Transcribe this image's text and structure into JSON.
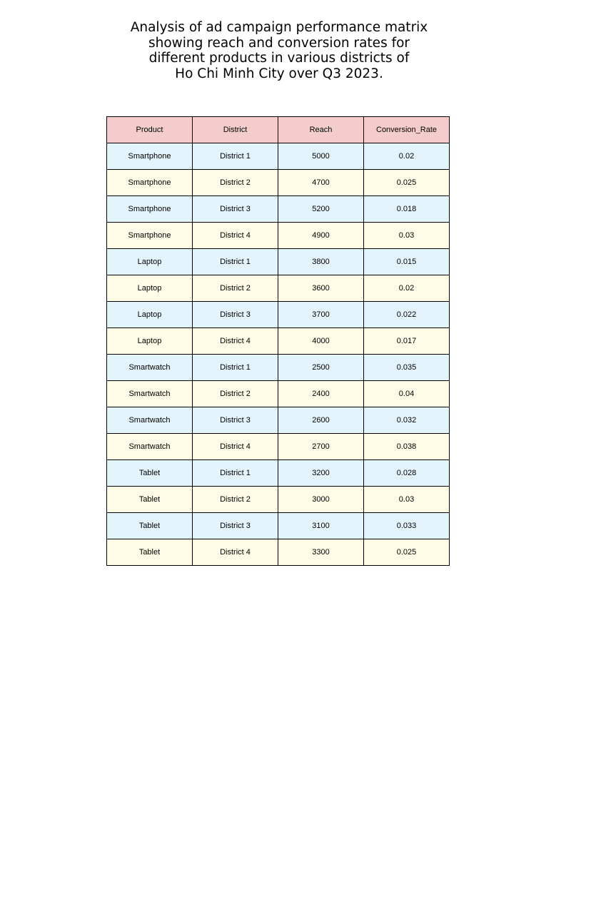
{
  "chart_data": {
    "type": "table",
    "title": "Analysis of ad campaign performance matrix\nshowing reach and conversion rates for\ndifferent products in various districts of\nHo Chi Minh City over Q3 2023.",
    "columns": [
      "Product",
      "District",
      "Reach",
      "Conversion_Rate"
    ],
    "rows": [
      [
        "Smartphone",
        "District 1",
        "5000",
        "0.02"
      ],
      [
        "Smartphone",
        "District 2",
        "4700",
        "0.025"
      ],
      [
        "Smartphone",
        "District 3",
        "5200",
        "0.018"
      ],
      [
        "Smartphone",
        "District 4",
        "4900",
        "0.03"
      ],
      [
        "Laptop",
        "District 1",
        "3800",
        "0.015"
      ],
      [
        "Laptop",
        "District 2",
        "3600",
        "0.02"
      ],
      [
        "Laptop",
        "District 3",
        "3700",
        "0.022"
      ],
      [
        "Laptop",
        "District 4",
        "4000",
        "0.017"
      ],
      [
        "Smartwatch",
        "District 1",
        "2500",
        "0.035"
      ],
      [
        "Smartwatch",
        "District 2",
        "2400",
        "0.04"
      ],
      [
        "Smartwatch",
        "District 3",
        "2600",
        "0.032"
      ],
      [
        "Smartwatch",
        "District 4",
        "2700",
        "0.038"
      ],
      [
        "Tablet",
        "District 1",
        "3200",
        "0.028"
      ],
      [
        "Tablet",
        "District 2",
        "3000",
        "0.03"
      ],
      [
        "Tablet",
        "District 3",
        "3100",
        "0.033"
      ],
      [
        "Tablet",
        "District 4",
        "3300",
        "0.025"
      ]
    ],
    "colors": {
      "header": "#f4cccc",
      "row_odd": "#e4f4fd",
      "row_even": "#fefbe6"
    }
  }
}
